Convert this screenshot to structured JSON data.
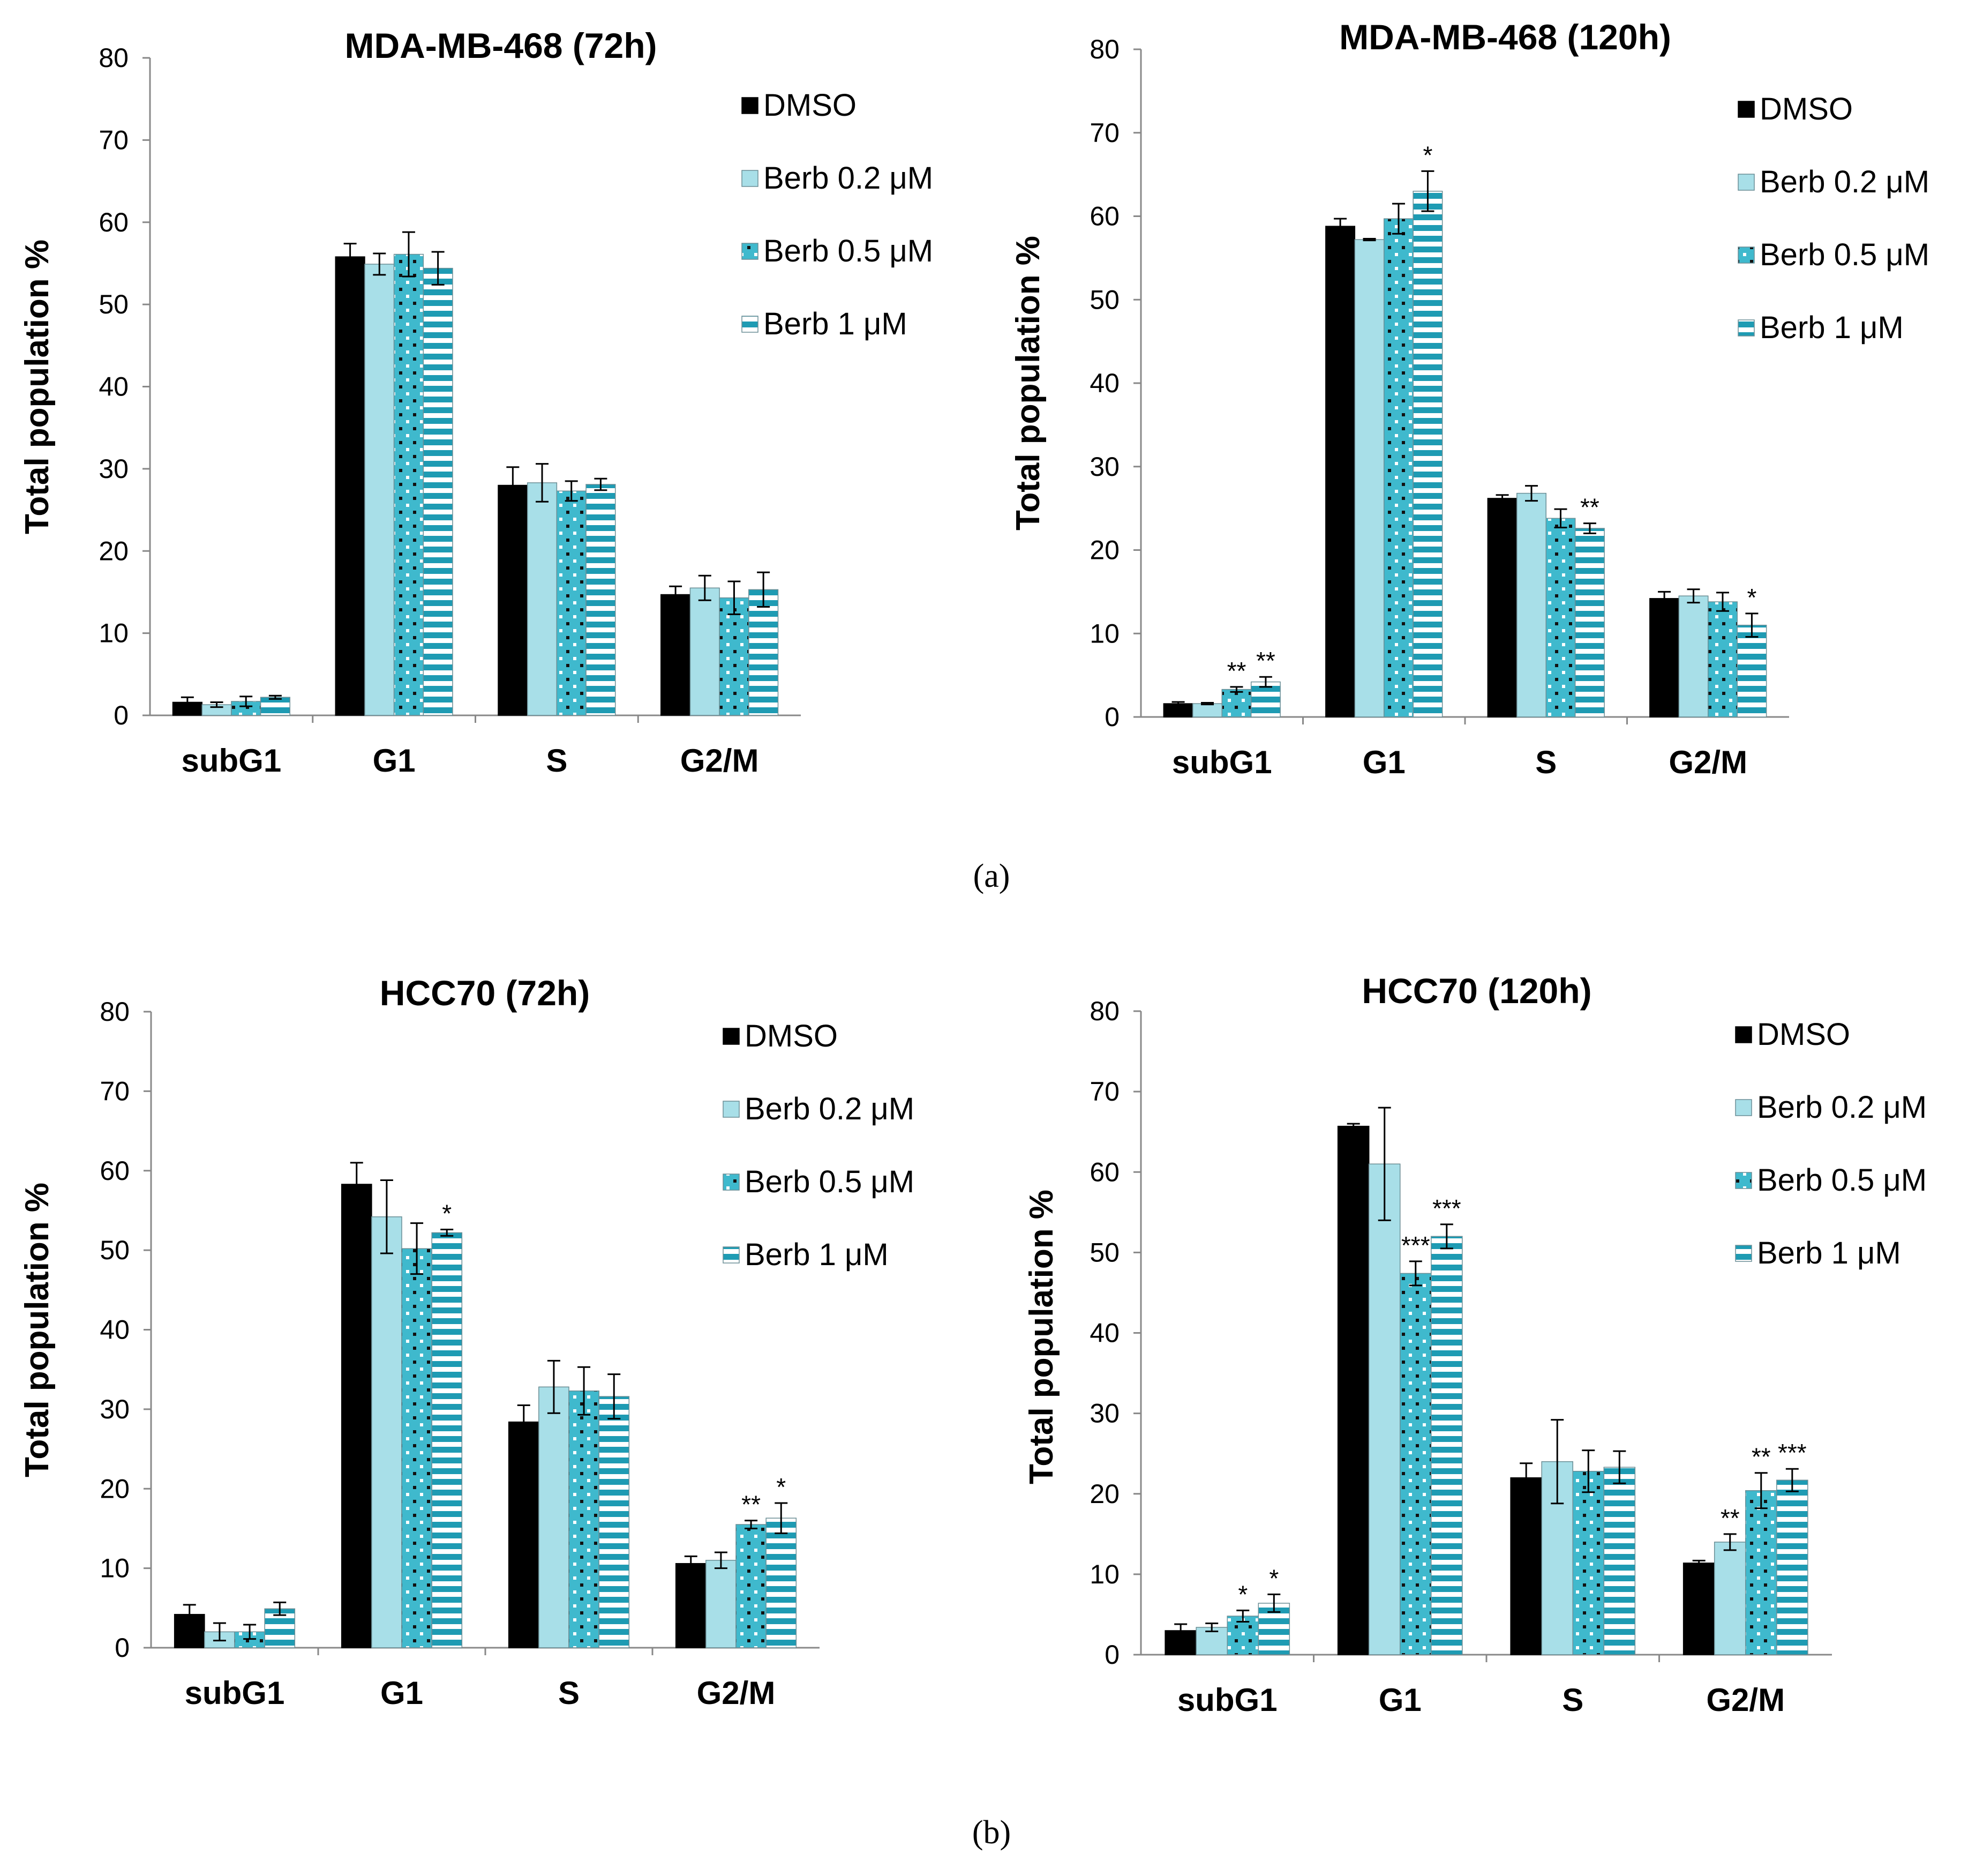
{
  "figure": {
    "panel_labels": [
      "(a)",
      "(b)"
    ],
    "series_style": [
      {
        "fill": "#000000",
        "pattern": "solid"
      },
      {
        "fill": "#a8dfe8",
        "pattern": "solid"
      },
      {
        "fill": "#3fb9cd",
        "pattern": "dots"
      },
      {
        "fill": "#1e9bb3",
        "pattern": "stripes"
      }
    ]
  },
  "chart_data": [
    {
      "type": "bar",
      "title": "MDA-MB-468 (72h)",
      "xlabel": "",
      "ylabel": "Total population %",
      "ylim": [
        0,
        80
      ],
      "yticks": [
        0,
        10,
        20,
        30,
        40,
        50,
        60,
        70,
        80
      ],
      "categories": [
        "subG1",
        "G1",
        "S",
        "G2/M"
      ],
      "legend_position": "top-right",
      "series": [
        {
          "name": "DMSO",
          "values": [
            1.6,
            55.8,
            28.0,
            14.7
          ],
          "errors": [
            0.6,
            1.6,
            2.2,
            1.0
          ],
          "annotations": [
            "",
            "",
            "",
            ""
          ]
        },
        {
          "name": "Berb 0.2 μM",
          "values": [
            1.3,
            54.9,
            28.3,
            15.5
          ],
          "errors": [
            0.3,
            1.3,
            2.3,
            1.5
          ],
          "annotations": [
            "",
            "",
            "",
            ""
          ]
        },
        {
          "name": "Berb 0.5 μM",
          "values": [
            1.7,
            56.1,
            27.3,
            14.3
          ],
          "errors": [
            0.6,
            2.7,
            1.2,
            2.0
          ],
          "annotations": [
            "",
            "",
            "",
            ""
          ]
        },
        {
          "name": "Berb 1 μM",
          "values": [
            2.2,
            54.4,
            28.1,
            15.3
          ],
          "errors": [
            0.2,
            2.0,
            0.7,
            2.1
          ],
          "annotations": [
            "",
            "",
            "",
            ""
          ]
        }
      ]
    },
    {
      "type": "bar",
      "title": "MDA-MB-468 (120h)",
      "xlabel": "",
      "ylabel": "Total population %",
      "ylim": [
        0,
        80
      ],
      "yticks": [
        0,
        10,
        20,
        30,
        40,
        50,
        60,
        70,
        80
      ],
      "categories": [
        "subG1",
        "G1",
        "S",
        "G2/M"
      ],
      "legend_position": "top-right",
      "series": [
        {
          "name": "DMSO",
          "values": [
            1.6,
            58.8,
            26.2,
            14.2
          ],
          "errors": [
            0.2,
            0.9,
            0.4,
            0.8
          ],
          "annotations": [
            "",
            "",
            "",
            ""
          ]
        },
        {
          "name": "Berb 0.2 μM",
          "values": [
            1.6,
            57.2,
            26.8,
            14.5
          ],
          "errors": [
            0.1,
            0.1,
            0.9,
            0.8
          ],
          "annotations": [
            "",
            "",
            "",
            ""
          ]
        },
        {
          "name": "Berb 0.5 μM",
          "values": [
            3.3,
            59.7,
            23.8,
            13.8
          ],
          "errors": [
            0.3,
            1.8,
            1.1,
            1.1
          ],
          "annotations": [
            "**",
            "",
            "",
            ""
          ]
        },
        {
          "name": "Berb 1 μM",
          "values": [
            4.2,
            63.0,
            22.6,
            11.0
          ],
          "errors": [
            0.6,
            2.4,
            0.6,
            1.4
          ],
          "annotations": [
            "**",
            "*",
            "**",
            "*"
          ]
        }
      ]
    },
    {
      "type": "bar",
      "title": "HCC70 (72h)",
      "xlabel": "",
      "ylabel": "Total population %",
      "ylim": [
        0,
        80
      ],
      "yticks": [
        0,
        10,
        20,
        30,
        40,
        50,
        60,
        70,
        80
      ],
      "categories": [
        "subG1",
        "G1",
        "S",
        "G2/M"
      ],
      "legend_position": "top-right",
      "series": [
        {
          "name": "DMSO",
          "values": [
            4.2,
            58.3,
            28.4,
            10.6
          ],
          "errors": [
            1.2,
            2.7,
            2.1,
            0.9
          ],
          "annotations": [
            "",
            "",
            "",
            ""
          ]
        },
        {
          "name": "Berb 0.2 μM",
          "values": [
            2.0,
            54.2,
            32.8,
            11.0
          ],
          "errors": [
            1.1,
            4.6,
            3.3,
            1.0
          ],
          "annotations": [
            "",
            "",
            "",
            ""
          ]
        },
        {
          "name": "Berb 0.5 μM",
          "values": [
            2.0,
            50.2,
            32.3,
            15.5
          ],
          "errors": [
            0.9,
            3.2,
            3.0,
            0.5
          ],
          "annotations": [
            "",
            "",
            "",
            "**"
          ]
        },
        {
          "name": "Berb 1 μM",
          "values": [
            4.9,
            52.2,
            31.6,
            16.3
          ],
          "errors": [
            0.8,
            0.4,
            2.8,
            1.9
          ],
          "annotations": [
            "",
            "*",
            "",
            "*"
          ]
        }
      ]
    },
    {
      "type": "bar",
      "title": "HCC70 (120h)",
      "xlabel": "",
      "ylabel": "Total population %",
      "ylim": [
        0,
        80
      ],
      "yticks": [
        0,
        10,
        20,
        30,
        40,
        50,
        60,
        70,
        80
      ],
      "categories": [
        "subG1",
        "G1",
        "S",
        "G2/M"
      ],
      "legend_position": "top-right",
      "series": [
        {
          "name": "DMSO",
          "values": [
            3.0,
            65.7,
            22.0,
            11.4
          ],
          "errors": [
            0.8,
            0.3,
            1.8,
            0.3
          ],
          "annotations": [
            "",
            "",
            "",
            ""
          ]
        },
        {
          "name": "Berb 0.2 μM",
          "values": [
            3.4,
            61.0,
            24.0,
            14.0
          ],
          "errors": [
            0.5,
            7.0,
            5.2,
            1.0
          ],
          "annotations": [
            "",
            "",
            "",
            "**"
          ]
        },
        {
          "name": "Berb 0.5 μM",
          "values": [
            4.8,
            47.4,
            22.8,
            20.4
          ],
          "errors": [
            0.7,
            1.5,
            2.6,
            2.2
          ],
          "annotations": [
            "*",
            "***",
            "",
            "**"
          ]
        },
        {
          "name": "Berb 1 μM",
          "values": [
            6.4,
            52.0,
            23.3,
            21.7
          ],
          "errors": [
            1.1,
            1.5,
            2.0,
            1.4
          ],
          "annotations": [
            "*",
            "***",
            "",
            "***"
          ]
        }
      ]
    }
  ]
}
